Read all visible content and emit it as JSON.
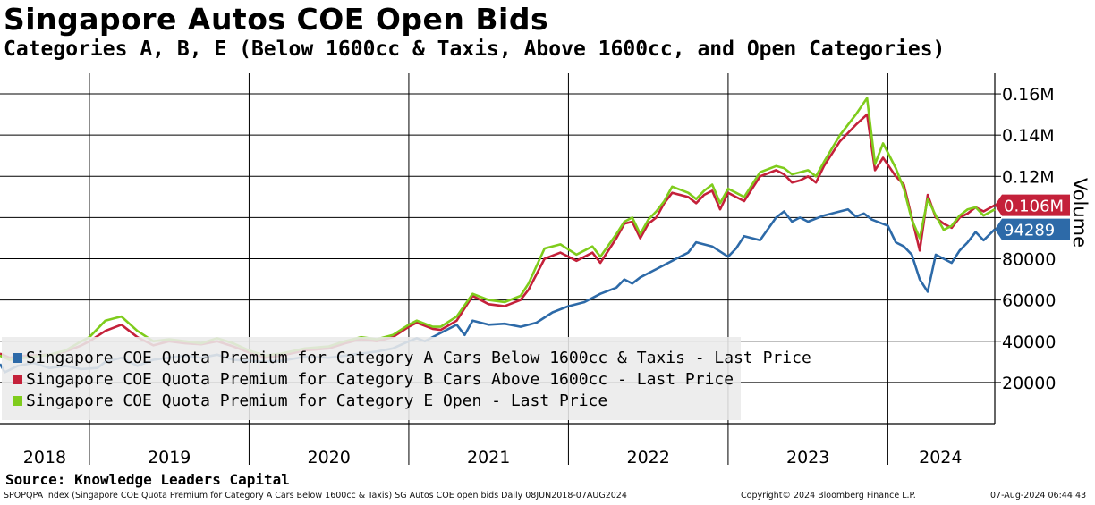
{
  "title": "Singapore Autos COE Open Bids",
  "subtitle": "Categories A, B, E (Below 1600cc & Taxis, Above 1600cc, and Open Categories)",
  "source": "Source: Knowledge Leaders Capital",
  "footer": {
    "index_info": "SPOPQPA Index (Singapore COE Quota Premium for Category A Cars Below 1600cc & Taxis) SG Autos COE open bids  Daily 08JUN2018-07AUG2024",
    "copyright": "Copyright© 2024 Bloomberg Finance L.P.",
    "timestamp": "07-Aug-2024 06:44:43"
  },
  "colors": {
    "cat_a": "#2d6aa8",
    "cat_b": "#c4213a",
    "cat_e": "#7fcc1c"
  },
  "chart_data": {
    "type": "line",
    "title": "Singapore Autos COE Open Bids",
    "ylabel": "Volume",
    "ylim": [
      0,
      170000
    ],
    "yticks": [
      20000,
      40000,
      60000,
      80000,
      100000,
      120000,
      140000,
      160000
    ],
    "ytick_labels": [
      "20000",
      "40000",
      "60000",
      "80000",
      "",
      "0.12M",
      "0.14M",
      "0.16M"
    ],
    "xlim": [
      2018.44,
      2024.67
    ],
    "year_boundaries": [
      2019,
      2020,
      2021,
      2022,
      2023,
      2024
    ],
    "x_tick_labels": [
      {
        "label": "2018",
        "x": 2018.72
      },
      {
        "label": "2019",
        "x": 2019.5
      },
      {
        "label": "2020",
        "x": 2020.5
      },
      {
        "label": "2021",
        "x": 2021.5
      },
      {
        "label": "2022",
        "x": 2022.5
      },
      {
        "label": "2023",
        "x": 2023.5
      },
      {
        "label": "2024",
        "x": 2024.33
      }
    ],
    "series": [
      {
        "name": "Singapore COE Quota Premium for Category A Cars Below 1600cc & Taxis - Last Price",
        "color": "#2d6aa8",
        "last_value_label": "94289",
        "points": [
          [
            2018.44,
            29000
          ],
          [
            2018.47,
            25000
          ],
          [
            2018.55,
            28000
          ],
          [
            2018.65,
            29500
          ],
          [
            2018.75,
            27000
          ],
          [
            2018.85,
            28000
          ],
          [
            2018.95,
            26500
          ],
          [
            2019.05,
            27000
          ],
          [
            2019.1,
            30000
          ],
          [
            2019.2,
            32000
          ],
          [
            2019.3,
            28000
          ],
          [
            2019.4,
            31000
          ],
          [
            2019.5,
            32000
          ],
          [
            2019.6,
            33000
          ],
          [
            2019.7,
            32000
          ],
          [
            2019.8,
            33500
          ],
          [
            2019.9,
            31000
          ],
          [
            2020.0,
            30500
          ],
          [
            2020.1,
            30000
          ],
          [
            2020.2,
            30500
          ],
          [
            2020.35,
            32500
          ],
          [
            2020.5,
            32000
          ],
          [
            2020.6,
            33000
          ],
          [
            2020.7,
            34000
          ],
          [
            2020.8,
            35000
          ],
          [
            2020.9,
            36500
          ],
          [
            2021.0,
            40000
          ],
          [
            2021.05,
            41500
          ],
          [
            2021.1,
            40000
          ],
          [
            2021.2,
            44000
          ],
          [
            2021.3,
            48000
          ],
          [
            2021.35,
            43000
          ],
          [
            2021.4,
            50000
          ],
          [
            2021.5,
            48000
          ],
          [
            2021.6,
            48500
          ],
          [
            2021.7,
            47000
          ],
          [
            2021.8,
            49000
          ],
          [
            2021.9,
            54000
          ],
          [
            2022.0,
            57000
          ],
          [
            2022.1,
            59000
          ],
          [
            2022.2,
            63000
          ],
          [
            2022.3,
            66000
          ],
          [
            2022.35,
            70000
          ],
          [
            2022.4,
            68000
          ],
          [
            2022.45,
            71000
          ],
          [
            2022.55,
            75000
          ],
          [
            2022.65,
            79000
          ],
          [
            2022.75,
            83000
          ],
          [
            2022.8,
            88000
          ],
          [
            2022.9,
            86000
          ],
          [
            2023.0,
            81000
          ],
          [
            2023.05,
            85000
          ],
          [
            2023.1,
            91000
          ],
          [
            2023.2,
            89000
          ],
          [
            2023.3,
            100000
          ],
          [
            2023.35,
            103000
          ],
          [
            2023.4,
            98000
          ],
          [
            2023.45,
            100000
          ],
          [
            2023.5,
            98000
          ],
          [
            2023.6,
            101000
          ],
          [
            2023.7,
            103000
          ],
          [
            2023.75,
            104000
          ],
          [
            2023.8,
            100500
          ],
          [
            2023.85,
            102000
          ],
          [
            2023.9,
            99000
          ],
          [
            2024.0,
            96000
          ],
          [
            2024.05,
            88000
          ],
          [
            2024.1,
            86000
          ],
          [
            2024.15,
            82000
          ],
          [
            2024.2,
            70000
          ],
          [
            2024.25,
            64000
          ],
          [
            2024.3,
            82000
          ],
          [
            2024.35,
            80000
          ],
          [
            2024.4,
            78000
          ],
          [
            2024.45,
            84000
          ],
          [
            2024.5,
            88000
          ],
          [
            2024.55,
            93000
          ],
          [
            2024.6,
            89000
          ],
          [
            2024.67,
            94289
          ]
        ]
      },
      {
        "name": "Singapore COE Quota Premium for Category B Cars Above 1600cc - Last Price",
        "color": "#c4213a",
        "last_value_label": "0.106M",
        "points": [
          [
            2018.44,
            34000
          ],
          [
            2018.5,
            32000
          ],
          [
            2018.6,
            33000
          ],
          [
            2018.75,
            33500
          ],
          [
            2018.85,
            35000
          ],
          [
            2018.95,
            38000
          ],
          [
            2019.0,
            40000
          ],
          [
            2019.1,
            45000
          ],
          [
            2019.2,
            48000
          ],
          [
            2019.3,
            42000
          ],
          [
            2019.4,
            38000
          ],
          [
            2019.5,
            40000
          ],
          [
            2019.6,
            39000
          ],
          [
            2019.7,
            38500
          ],
          [
            2019.8,
            40000
          ],
          [
            2019.9,
            37500
          ],
          [
            2020.0,
            34500
          ],
          [
            2020.1,
            32000
          ],
          [
            2020.2,
            33000
          ],
          [
            2020.35,
            35500
          ],
          [
            2020.5,
            36500
          ],
          [
            2020.6,
            39000
          ],
          [
            2020.7,
            41000
          ],
          [
            2020.8,
            40000
          ],
          [
            2020.9,
            42000
          ],
          [
            2021.0,
            47000
          ],
          [
            2021.05,
            49000
          ],
          [
            2021.15,
            46000
          ],
          [
            2021.2,
            45500
          ],
          [
            2021.3,
            50000
          ],
          [
            2021.4,
            62000
          ],
          [
            2021.5,
            58000
          ],
          [
            2021.6,
            57000
          ],
          [
            2021.7,
            60000
          ],
          [
            2021.75,
            65000
          ],
          [
            2021.85,
            80000
          ],
          [
            2021.95,
            83000
          ],
          [
            2022.05,
            79000
          ],
          [
            2022.15,
            83000
          ],
          [
            2022.2,
            78000
          ],
          [
            2022.3,
            90000
          ],
          [
            2022.35,
            97000
          ],
          [
            2022.4,
            98000
          ],
          [
            2022.45,
            90000
          ],
          [
            2022.5,
            97000
          ],
          [
            2022.55,
            100000
          ],
          [
            2022.6,
            107000
          ],
          [
            2022.65,
            112000
          ],
          [
            2022.75,
            110000
          ],
          [
            2022.8,
            107000
          ],
          [
            2022.85,
            111000
          ],
          [
            2022.9,
            113000
          ],
          [
            2022.95,
            104000
          ],
          [
            2023.0,
            112000
          ],
          [
            2023.05,
            110000
          ],
          [
            2023.1,
            108000
          ],
          [
            2023.2,
            120000
          ],
          [
            2023.3,
            123000
          ],
          [
            2023.35,
            121000
          ],
          [
            2023.4,
            117000
          ],
          [
            2023.45,
            118000
          ],
          [
            2023.5,
            120000
          ],
          [
            2023.55,
            117000
          ],
          [
            2023.6,
            125000
          ],
          [
            2023.7,
            137000
          ],
          [
            2023.8,
            145000
          ],
          [
            2023.87,
            150000
          ],
          [
            2023.92,
            123000
          ],
          [
            2023.97,
            129000
          ],
          [
            2024.05,
            120000
          ],
          [
            2024.1,
            116000
          ],
          [
            2024.15,
            100000
          ],
          [
            2024.2,
            84000
          ],
          [
            2024.25,
            111000
          ],
          [
            2024.3,
            100000
          ],
          [
            2024.35,
            97000
          ],
          [
            2024.4,
            95000
          ],
          [
            2024.45,
            100000
          ],
          [
            2024.5,
            102000
          ],
          [
            2024.55,
            105000
          ],
          [
            2024.6,
            103000
          ],
          [
            2024.67,
            106000
          ]
        ]
      },
      {
        "name": "Singapore COE Quota Premium for Category E Open - Last Price",
        "color": "#7fcc1c",
        "last_value_label": "",
        "points": [
          [
            2018.44,
            33000
          ],
          [
            2018.5,
            31000
          ],
          [
            2018.6,
            32000
          ],
          [
            2018.75,
            33500
          ],
          [
            2018.85,
            35500
          ],
          [
            2018.95,
            40000
          ],
          [
            2019.0,
            42000
          ],
          [
            2019.1,
            50000
          ],
          [
            2019.2,
            52000
          ],
          [
            2019.3,
            45000
          ],
          [
            2019.4,
            40000
          ],
          [
            2019.5,
            41000
          ],
          [
            2019.6,
            40000
          ],
          [
            2019.7,
            39000
          ],
          [
            2019.8,
            41500
          ],
          [
            2019.9,
            39000
          ],
          [
            2020.0,
            35500
          ],
          [
            2020.1,
            33000
          ],
          [
            2020.2,
            34000
          ],
          [
            2020.35,
            36500
          ],
          [
            2020.5,
            37500
          ],
          [
            2020.6,
            40000
          ],
          [
            2020.7,
            42000
          ],
          [
            2020.8,
            41000
          ],
          [
            2020.9,
            43000
          ],
          [
            2021.0,
            48000
          ],
          [
            2021.05,
            50000
          ],
          [
            2021.15,
            47000
          ],
          [
            2021.2,
            47000
          ],
          [
            2021.3,
            52000
          ],
          [
            2021.4,
            63000
          ],
          [
            2021.5,
            60000
          ],
          [
            2021.6,
            59000
          ],
          [
            2021.7,
            62000
          ],
          [
            2021.75,
            68000
          ],
          [
            2021.85,
            85000
          ],
          [
            2021.95,
            87000
          ],
          [
            2022.05,
            82000
          ],
          [
            2022.15,
            86000
          ],
          [
            2022.2,
            81000
          ],
          [
            2022.3,
            92000
          ],
          [
            2022.35,
            98000
          ],
          [
            2022.4,
            100000
          ],
          [
            2022.45,
            92000
          ],
          [
            2022.5,
            99000
          ],
          [
            2022.55,
            103000
          ],
          [
            2022.6,
            108000
          ],
          [
            2022.65,
            115000
          ],
          [
            2022.75,
            112000
          ],
          [
            2022.8,
            109000
          ],
          [
            2022.85,
            113000
          ],
          [
            2022.9,
            116000
          ],
          [
            2022.95,
            107000
          ],
          [
            2023.0,
            114000
          ],
          [
            2023.05,
            112000
          ],
          [
            2023.1,
            110000
          ],
          [
            2023.2,
            122000
          ],
          [
            2023.3,
            125000
          ],
          [
            2023.35,
            124000
          ],
          [
            2023.4,
            121000
          ],
          [
            2023.45,
            122000
          ],
          [
            2023.5,
            123000
          ],
          [
            2023.55,
            120000
          ],
          [
            2023.6,
            127000
          ],
          [
            2023.7,
            140000
          ],
          [
            2023.8,
            150000
          ],
          [
            2023.87,
            158000
          ],
          [
            2023.92,
            126000
          ],
          [
            2023.97,
            136000
          ],
          [
            2024.05,
            124000
          ],
          [
            2024.1,
            114000
          ],
          [
            2024.15,
            99000
          ],
          [
            2024.2,
            90000
          ],
          [
            2024.25,
            109000
          ],
          [
            2024.3,
            101000
          ],
          [
            2024.35,
            94000
          ],
          [
            2024.4,
            96000
          ],
          [
            2024.45,
            101000
          ],
          [
            2024.5,
            104000
          ],
          [
            2024.55,
            105000
          ],
          [
            2024.6,
            101000
          ],
          [
            2024.67,
            104000
          ]
        ]
      }
    ]
  }
}
